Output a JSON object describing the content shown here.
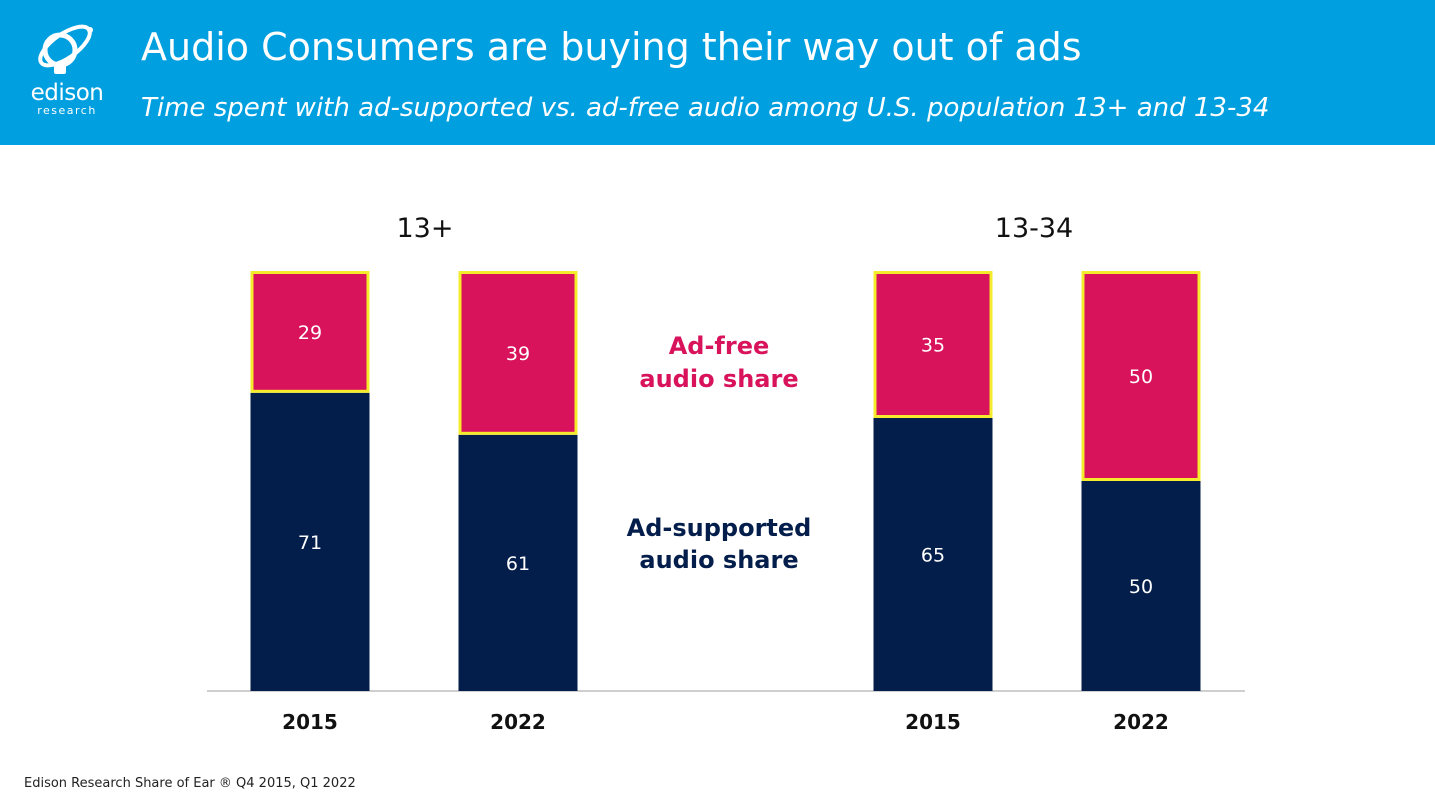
{
  "header": {
    "title": "Audio Consumers are buying their way out of ads",
    "subtitle": "Time spent with ad-supported vs. ad-free audio among U.S. population 13+ and 13-34",
    "logo_word": "edison",
    "logo_sub": "research",
    "logo_icon": "edison-lightbulb-logo-icon"
  },
  "colors": {
    "header_bg": "#009fdf",
    "ad_free": "#d8125b",
    "ad_supported": "#041e4b",
    "highlight_border": "#f5eb2d"
  },
  "chart_data": {
    "type": "bar",
    "stacked": true,
    "groups": [
      {
        "label": "13+",
        "categories": [
          "2015",
          "2022"
        ]
      },
      {
        "label": "13-34",
        "categories": [
          "2015",
          "2022"
        ]
      }
    ],
    "series": [
      {
        "name": "Ad-supported audio share",
        "values": [
          71,
          61,
          65,
          50
        ],
        "color": "#041e4b"
      },
      {
        "name": "Ad-free audio share",
        "values": [
          29,
          39,
          35,
          50
        ],
        "color": "#d8125b"
      }
    ],
    "ylim": [
      0,
      100
    ],
    "legend": {
      "ad_free_label": [
        "Ad-free",
        "audio share"
      ],
      "ad_supported_label": [
        "Ad-supported",
        "audio share"
      ],
      "placement": "center-between-groups"
    }
  },
  "footnote": "Edison Research Share of Ear ® Q4 2015, Q1 2022"
}
